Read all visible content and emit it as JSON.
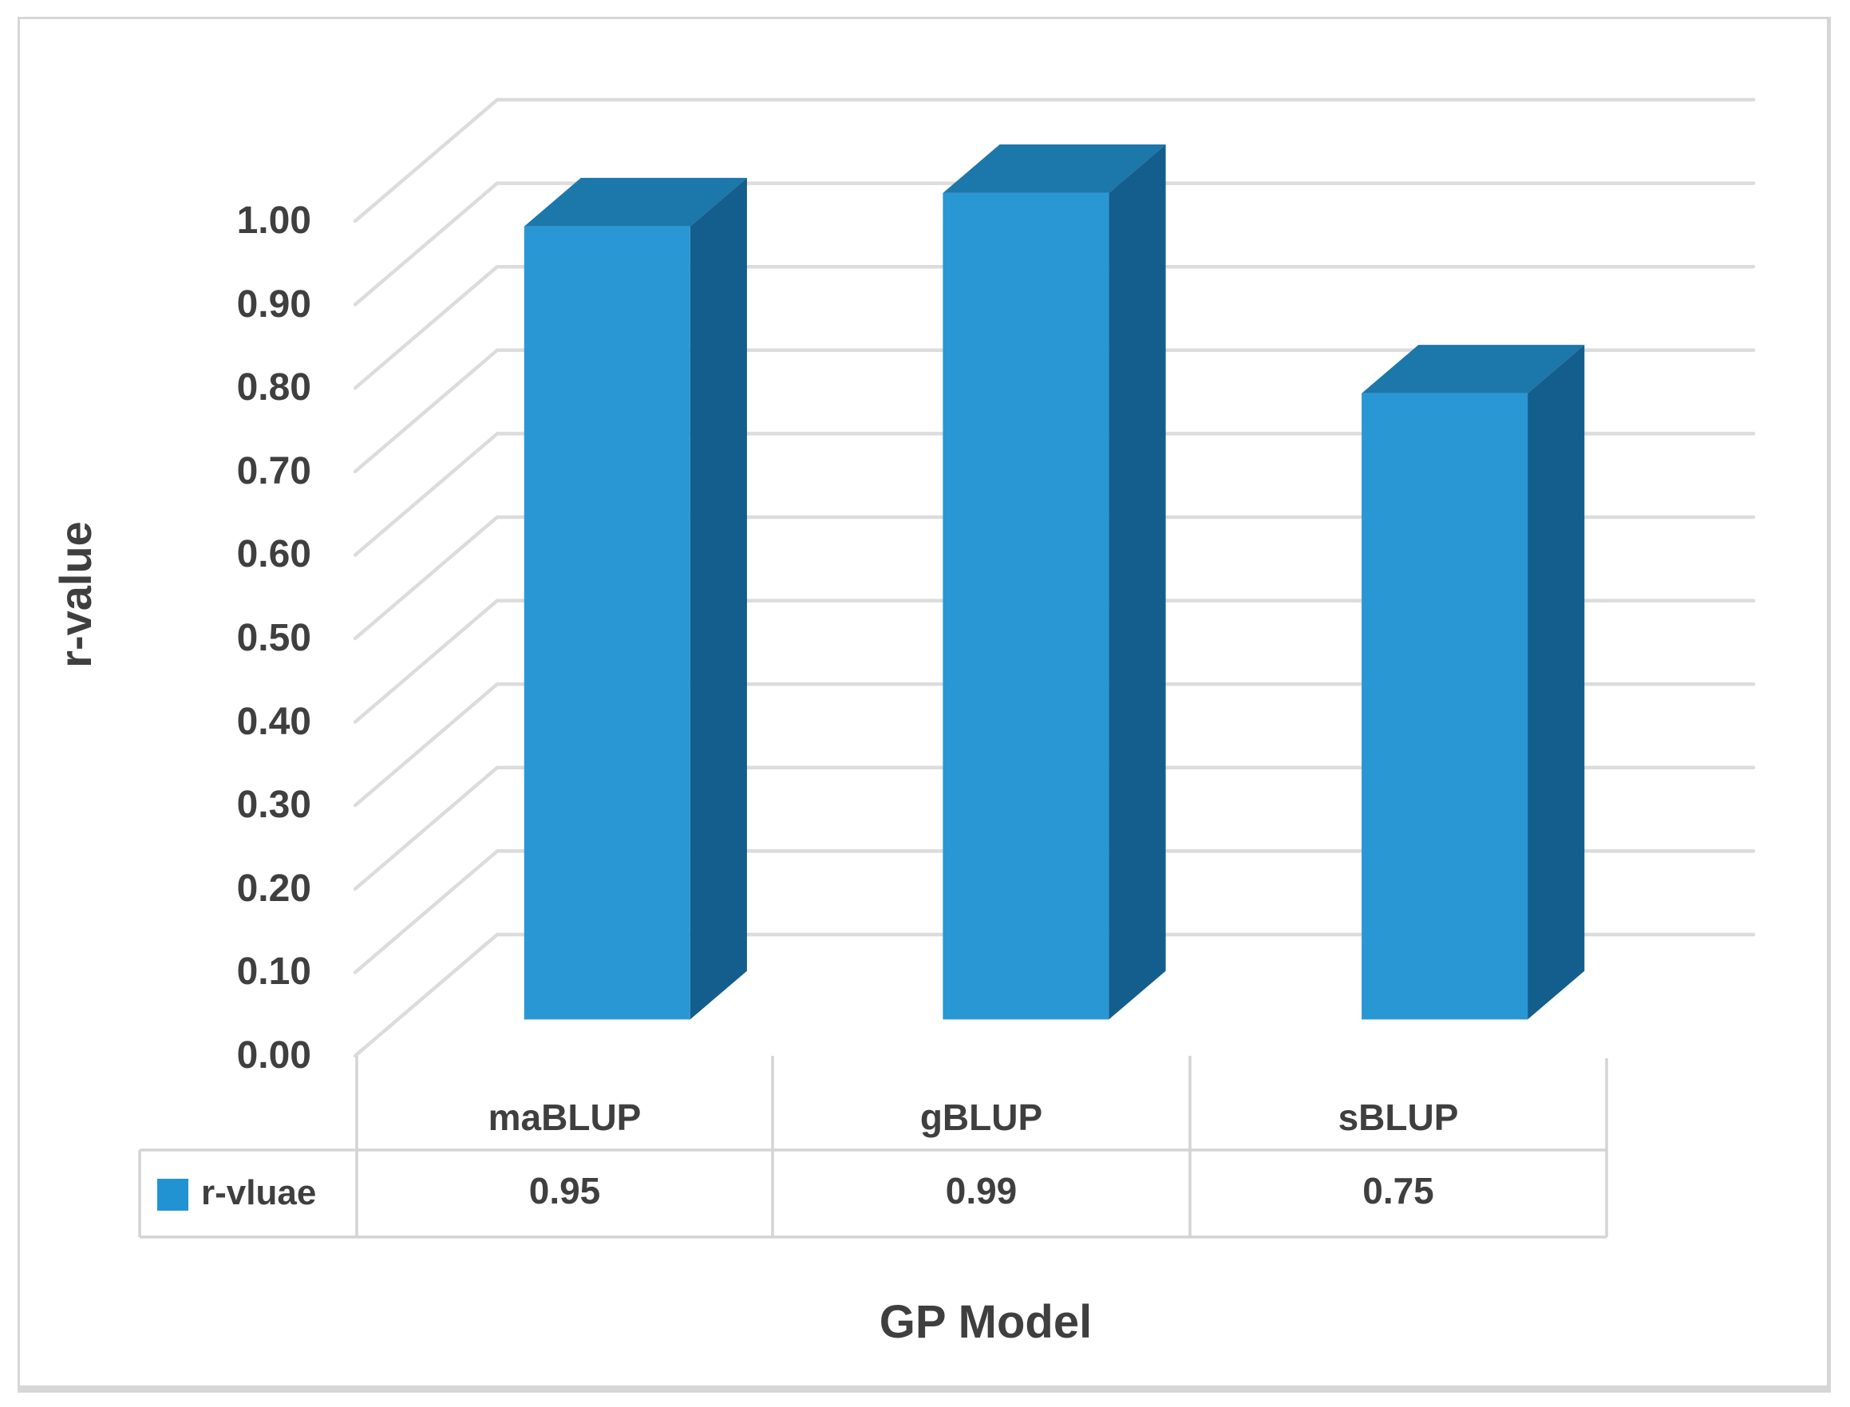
{
  "chart_data": {
    "type": "bar",
    "style": "3d-column",
    "categories": [
      "maBLUP",
      "gBLUP",
      "sBLUP"
    ],
    "series": [
      {
        "name": "r-vluae",
        "values": [
          0.95,
          0.99,
          0.75
        ]
      }
    ],
    "title": "",
    "xlabel": "GP Model",
    "ylabel": "r-value",
    "ylim": [
      0,
      1.0
    ],
    "ytick_step": 0.1,
    "yticks": [
      "0.00",
      "0.10",
      "0.20",
      "0.30",
      "0.40",
      "0.50",
      "0.60",
      "0.70",
      "0.80",
      "0.90",
      "1.00"
    ],
    "grid": true,
    "legend_position": "bottom-table-left",
    "colors": {
      "bar_front": "#2a97d5",
      "bar_top": "#1c77ab",
      "bar_side": "#145e8e",
      "legend_swatch": "#2193d2",
      "gridline": "#dcdcdc",
      "table_border": "#d4d4d4",
      "text": "#3f3f3f"
    }
  },
  "data_table": {
    "legend_label": "r-vluae",
    "columns": [
      "maBLUP",
      "gBLUP",
      "sBLUP"
    ],
    "values": [
      "0.95",
      "0.99",
      "0.75"
    ]
  }
}
